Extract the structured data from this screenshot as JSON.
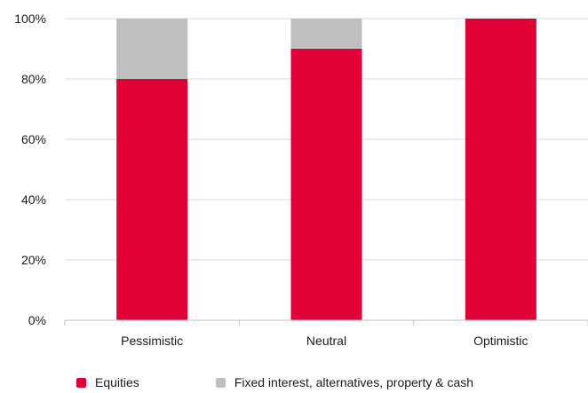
{
  "chart_data": {
    "type": "bar",
    "stacked": true,
    "categories": [
      "Pessimistic",
      "Neutral",
      "Optimistic"
    ],
    "series": [
      {
        "name": "Equities",
        "values": [
          80,
          90,
          100
        ],
        "color": "#e10036"
      },
      {
        "name": "Fixed interest, alternatives, property & cash",
        "values": [
          20,
          10,
          0
        ],
        "color": "#bfbfbf"
      }
    ],
    "yticks": [
      "0%",
      "20%",
      "40%",
      "60%",
      "80%",
      "100%"
    ],
    "ylim": [
      0,
      100
    ],
    "grid": true,
    "legend_position": "bottom"
  }
}
